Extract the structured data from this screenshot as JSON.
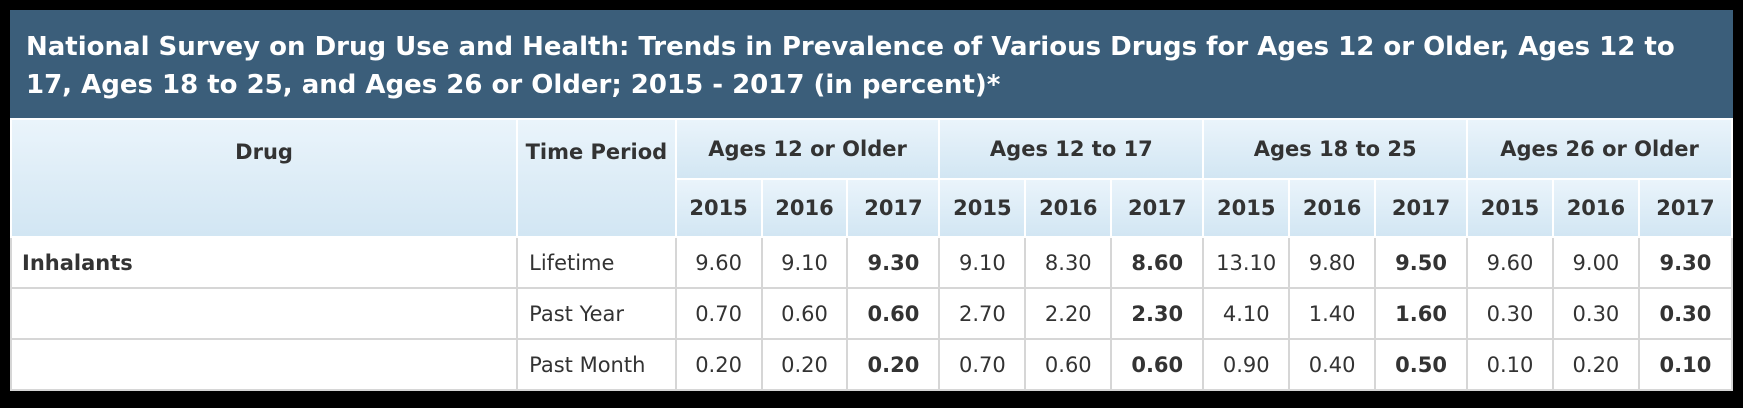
{
  "title": "National Survey on Drug Use and Health: Trends in Prevalence of Various Drugs for Ages 12 or Older, Ages 12 to 17, Ages 18 to 25, and Ages 26 or Older; 2015 - 2017 (in percent)*",
  "columns": {
    "drug": "Drug",
    "time_period": "Time Period",
    "groups": [
      "Ages 12 or Older",
      "Ages 12 to 17",
      "Ages 18 to 25",
      "Ages 26 or Older"
    ],
    "years": [
      "2015",
      "2016",
      "2017"
    ]
  },
  "rows": [
    {
      "drug": "Inhalants",
      "period": "Lifetime",
      "values": [
        "9.60",
        "9.10",
        "9.30",
        "9.10",
        "8.30",
        "8.60",
        "13.10",
        "9.80",
        "9.50",
        "9.60",
        "9.00",
        "9.30"
      ]
    },
    {
      "drug": "",
      "period": "Past Year",
      "values": [
        "0.70",
        "0.60",
        "0.60",
        "2.70",
        "2.20",
        "2.30",
        "4.10",
        "1.40",
        "1.60",
        "0.30",
        "0.30",
        "0.30"
      ]
    },
    {
      "drug": "",
      "period": "Past Month",
      "values": [
        "0.20",
        "0.20",
        "0.20",
        "0.70",
        "0.60",
        "0.60",
        "0.90",
        "0.40",
        "0.50",
        "0.10",
        "0.20",
        "0.10"
      ]
    }
  ]
}
